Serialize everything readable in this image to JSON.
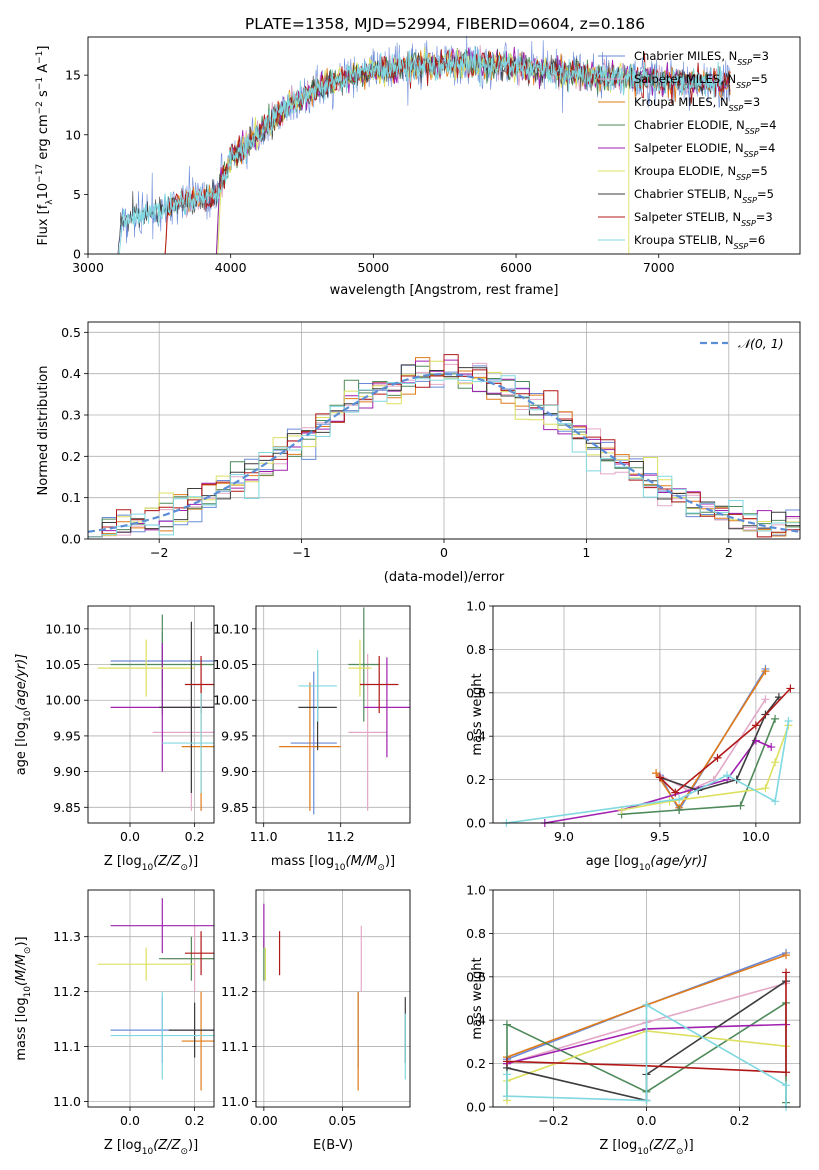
{
  "title": "PLATE=1358, MJD=52994, FIBERID=0604, z=0.186",
  "colors": {
    "chabrier_miles": "#6a8ad8",
    "salpeter_miles": "#e3a8c8",
    "kroupa_miles": "#e07b1a",
    "chabrier_elodie": "#4f8a5a",
    "salpeter_elodie": "#a020b0",
    "kroupa_elodie": "#dde060",
    "chabrier_stelib": "#3c3c3c",
    "salpeter_stelib": "#b01818",
    "kroupa_stelib": "#80d8e0",
    "grid": "#b0b0b0",
    "gauss": "#5b8ed6"
  },
  "chart_data": [
    {
      "id": "spectrum",
      "type": "line",
      "xlabel": "wavelength [Angstrom, rest frame]",
      "ylabel": "Flux [f",
      "ylabel_sub": "λ",
      "ylabel_exp": "10",
      "ylabel_sup": "−17",
      "ylabel_rest": " erg cm",
      "ylabel_sup2": "−2",
      "ylabel_rest2": " s",
      "ylabel_sup3": "−1",
      "ylabel_rest3": " A",
      "ylabel_sup4": "−1",
      "ylabel_end": "]",
      "xlim": [
        3000,
        7990
      ],
      "ylim": [
        0,
        18.2
      ],
      "xticks": [
        "3000",
        "4000",
        "5000",
        "6000",
        "7000"
      ],
      "yticks": [
        "0",
        "5",
        "10",
        "15"
      ],
      "legend_position": "right",
      "series": [
        {
          "key": "chabrier_miles",
          "name": "Chabrier MILES, N",
          "sub": "SSP",
          "n": "=3",
          "start": 3210
        },
        {
          "key": "salpeter_miles",
          "name": "Salpeter MILES, N",
          "sub": "SSP",
          "n": "=5",
          "start": 3540
        },
        {
          "key": "kroupa_miles",
          "name": "Kroupa MILES, N",
          "sub": "SSP",
          "n": "=3",
          "start": 3540
        },
        {
          "key": "chabrier_elodie",
          "name": "Chabrier ELODIE, N",
          "sub": "SSP",
          "n": "=4",
          "start": 3900
        },
        {
          "key": "salpeter_elodie",
          "name": "Salpeter ELODIE, N",
          "sub": "SSP",
          "n": "=4",
          "start": 3900
        },
        {
          "key": "kroupa_elodie",
          "name": "Kroupa ELODIE, N",
          "sub": "SSP",
          "n": "=5",
          "start": 3910
        },
        {
          "key": "chabrier_stelib",
          "name": "Chabrier STELIB, N",
          "sub": "SSP",
          "n": "=5",
          "start": 3210
        },
        {
          "key": "salpeter_stelib",
          "name": "Salpeter STELIB, N",
          "sub": "SSP",
          "n": "=3",
          "start": 3540
        },
        {
          "key": "kroupa_stelib",
          "name": "Kroupa STELIB, N",
          "sub": "SSP",
          "n": "=6",
          "start": 3220
        }
      ],
      "continuum": [
        [
          3210,
          2.7
        ],
        [
          3500,
          3.6
        ],
        [
          3700,
          4.5
        ],
        [
          3900,
          5.0
        ],
        [
          4000,
          8.0
        ],
        [
          4200,
          10.0
        ],
        [
          4400,
          12.5
        ],
        [
          4600,
          13.8
        ],
        [
          4800,
          14.8
        ],
        [
          5000,
          15.4
        ],
        [
          5300,
          15.8
        ],
        [
          5600,
          16.0
        ],
        [
          5900,
          15.9
        ],
        [
          6200,
          15.5
        ],
        [
          6500,
          15.0
        ],
        [
          6800,
          14.7
        ],
        [
          7100,
          14.5
        ],
        [
          7500,
          14.2
        ]
      ]
    },
    {
      "id": "residuals",
      "type": "histogram",
      "xlabel": "(data-model)/error",
      "ylabel": "Normed distribution",
      "xlim": [
        -2.5,
        2.5
      ],
      "ylim": [
        0,
        0.525
      ],
      "xticks": [
        "−2",
        "−1",
        "0",
        "1",
        "2"
      ],
      "yticks": [
        "0.0",
        "0.1",
        "0.2",
        "0.3",
        "0.4",
        "0.5"
      ],
      "legend_label": "𝒩(0, 1)",
      "legend_position": "top-right",
      "bin_width": 0.1
    },
    {
      "id": "age_vs_Z",
      "type": "errorbar",
      "xlabel": "Z [log",
      "xlabel_sub": "10",
      "xlabel_rest": "(Z/Z",
      "xlabel_sun": "⊙",
      "xlabel_end": ")]",
      "ylabel": "age  [log",
      "ylabel_sub": "10",
      "ylabel_rest": "(age/yr)]",
      "xlim": [
        -0.13,
        0.26
      ],
      "ylim": [
        9.828,
        10.132
      ],
      "xticks": [
        "0.0",
        "0.2"
      ],
      "yticks": [
        "9.85",
        "9.90",
        "9.95",
        "10.00",
        "10.05",
        "10.10"
      ],
      "points": [
        {
          "key": "chabrier_miles",
          "x": 0.1,
          "xerr": 0.16,
          "y": 10.055,
          "yerr": 0.04
        },
        {
          "key": "salpeter_miles",
          "x": 0.19,
          "xerr": 0.12,
          "y": 9.955,
          "yerr": 0.11
        },
        {
          "key": "kroupa_miles",
          "x": 0.22,
          "xerr": 0.06,
          "y": 9.935,
          "yerr": 0.09
        },
        {
          "key": "chabrier_elodie",
          "x": 0.1,
          "xerr": 0.16,
          "y": 10.05,
          "yerr": 0.07
        },
        {
          "key": "salpeter_elodie",
          "x": 0.1,
          "xerr": 0.16,
          "y": 9.99,
          "yerr": 0.09
        },
        {
          "key": "kroupa_elodie",
          "x": 0.05,
          "xerr": 0.15,
          "y": 10.045,
          "yerr": 0.04
        },
        {
          "key": "chabrier_stelib",
          "x": 0.19,
          "xerr": 0.1,
          "y": 9.99,
          "yerr": 0.12
        },
        {
          "key": "salpeter_stelib",
          "x": 0.22,
          "xerr": 0.05,
          "y": 10.022,
          "yerr": 0.04
        },
        {
          "key": "kroupa_stelib",
          "x": 0.22,
          "xerr": 0.12,
          "y": 9.94,
          "yerr": 0.07
        }
      ]
    },
    {
      "id": "age_vs_mass",
      "type": "errorbar",
      "xlabel": "mass [log",
      "xlabel_sub": "10",
      "xlabel_rest": "(M/M",
      "xlabel_sun": "⊙",
      "xlabel_end": ")]",
      "xlim": [
        10.98,
        11.38
      ],
      "ylim": [
        9.828,
        10.132
      ],
      "xticks": [
        "11.0",
        "11.2"
      ],
      "yticks": [
        "9.85",
        "9.90",
        "9.95",
        "10.00",
        "10.05",
        "10.10"
      ],
      "points": [
        {
          "key": "chabrier_miles",
          "x": 11.13,
          "xerr": 0.06,
          "y": 9.94,
          "yerr": 0.1
        },
        {
          "key": "salpeter_miles",
          "x": 11.27,
          "xerr": 0.05,
          "y": 9.955,
          "yerr": 0.11
        },
        {
          "key": "kroupa_miles",
          "x": 11.12,
          "xerr": 0.08,
          "y": 9.935,
          "yerr": 0.09
        },
        {
          "key": "chabrier_elodie",
          "x": 11.26,
          "xerr": 0.04,
          "y": 10.05,
          "yerr": 0.08
        },
        {
          "key": "salpeter_elodie",
          "x": 11.32,
          "xerr": 0.06,
          "y": 9.99,
          "yerr": 0.07
        },
        {
          "key": "kroupa_elodie",
          "x": 11.25,
          "xerr": 0.03,
          "y": 10.045,
          "yerr": 0.04
        },
        {
          "key": "chabrier_stelib",
          "x": 11.14,
          "xerr": 0.05,
          "y": 9.99,
          "yerr": 0.06
        },
        {
          "key": "salpeter_stelib",
          "x": 11.3,
          "xerr": 0.05,
          "y": 10.022,
          "yerr": 0.04
        },
        {
          "key": "kroupa_stelib",
          "x": 11.14,
          "xerr": 0.05,
          "y": 10.02,
          "yerr": 0.05
        }
      ]
    },
    {
      "id": "weight_vs_age",
      "type": "line",
      "xlabel": "age  [log",
      "xlabel_sub": "10",
      "xlabel_rest": "(age/yr)]",
      "ylabel": "mass weight",
      "xlim": [
        8.63,
        10.23
      ],
      "ylim": [
        0,
        1.0
      ],
      "xticks": [
        "9.0",
        "9.5",
        "10.0"
      ],
      "yticks": [
        "0.0",
        "0.2",
        "0.4",
        "0.6",
        "0.8",
        "1.0"
      ],
      "series": [
        {
          "key": "chabrier_miles",
          "x": [
            9.5,
            9.6,
            10.05
          ],
          "y": [
            0.22,
            0.06,
            0.71
          ]
        },
        {
          "key": "salpeter_miles",
          "x": [
            9.48,
            9.65,
            9.78,
            10.05
          ],
          "y": [
            0.23,
            0.15,
            0.2,
            0.57
          ]
        },
        {
          "key": "kroupa_miles",
          "x": [
            9.48,
            9.6,
            10.05
          ],
          "y": [
            0.23,
            0.07,
            0.7
          ]
        },
        {
          "key": "chabrier_elodie",
          "x": [
            9.3,
            9.6,
            9.92,
            10.1
          ],
          "y": [
            0.04,
            0.06,
            0.08,
            0.48
          ]
        },
        {
          "key": "salpeter_elodie",
          "x": [
            8.9,
            9.3,
            9.85,
            10.0,
            10.08
          ],
          "y": [
            0.0,
            0.06,
            0.2,
            0.38,
            0.35
          ]
        },
        {
          "key": "kroupa_elodie",
          "x": [
            9.3,
            9.55,
            10.05,
            10.1,
            10.17
          ],
          "y": [
            0.06,
            0.1,
            0.16,
            0.28,
            0.45
          ]
        },
        {
          "key": "chabrier_stelib",
          "x": [
            9.5,
            9.7,
            9.9,
            10.05,
            10.12
          ],
          "y": [
            0.21,
            0.15,
            0.2,
            0.5,
            0.58
          ]
        },
        {
          "key": "salpeter_stelib",
          "x": [
            9.5,
            9.58,
            9.8,
            10.0,
            10.18
          ],
          "y": [
            0.21,
            0.14,
            0.3,
            0.45,
            0.62
          ]
        },
        {
          "key": "kroupa_stelib",
          "x": [
            8.7,
            9.6,
            9.85,
            10.1,
            10.17
          ],
          "y": [
            0.0,
            0.11,
            0.22,
            0.1,
            0.47
          ]
        }
      ]
    },
    {
      "id": "mass_vs_Z",
      "type": "errorbar",
      "xlabel": "Z [log",
      "xlabel_sub": "10",
      "xlabel_rest": "(Z/Z",
      "xlabel_sun": "⊙",
      "xlabel_end": ")]",
      "ylabel": "mass [log",
      "ylabel_sub": "10",
      "ylabel_rest": "(M/M",
      "ylabel_sun": "⊙",
      "ylabel_end": ")]",
      "xlim": [
        -0.13,
        0.26
      ],
      "ylim": [
        10.99,
        11.385
      ],
      "xticks": [
        "0.0",
        "0.2"
      ],
      "yticks": [
        "11.0",
        "11.1",
        "11.2",
        "11.3"
      ],
      "points": [
        {
          "key": "chabrier_miles",
          "x": 0.1,
          "xerr": 0.16,
          "y": 11.13,
          "yerr": 0.06
        },
        {
          "key": "salpeter_miles",
          "x": 0.2,
          "xerr": 0.1,
          "y": 11.26,
          "yerr": 0.06
        },
        {
          "key": "kroupa_miles",
          "x": 0.22,
          "xerr": 0.06,
          "y": 11.11,
          "yerr": 0.09
        },
        {
          "key": "chabrier_elodie",
          "x": 0.19,
          "xerr": 0.1,
          "y": 11.26,
          "yerr": 0.04
        },
        {
          "key": "salpeter_elodie",
          "x": 0.1,
          "xerr": 0.16,
          "y": 11.32,
          "yerr": 0.05
        },
        {
          "key": "kroupa_elodie",
          "x": 0.05,
          "xerr": 0.15,
          "y": 11.25,
          "yerr": 0.03
        },
        {
          "key": "chabrier_stelib",
          "x": 0.2,
          "xerr": 0.08,
          "y": 11.13,
          "yerr": 0.05
        },
        {
          "key": "salpeter_stelib",
          "x": 0.22,
          "xerr": 0.05,
          "y": 11.27,
          "yerr": 0.04
        },
        {
          "key": "kroupa_stelib",
          "x": 0.1,
          "xerr": 0.16,
          "y": 11.12,
          "yerr": 0.08
        }
      ]
    },
    {
      "id": "mass_vs_ebv",
      "type": "errorbar",
      "xlabel": "E(B-V)",
      "xlim": [
        -0.005,
        0.093
      ],
      "ylim": [
        10.99,
        11.385
      ],
      "xticks": [
        "0.00",
        "0.05"
      ],
      "yticks": [
        "11.0",
        "11.1",
        "11.2",
        "11.3"
      ],
      "points": [
        {
          "key": "chabrier_miles",
          "x": 0.06,
          "xerr": 0,
          "y": 11.13,
          "yerr": 0.07
        },
        {
          "key": "salpeter_miles",
          "x": 0.062,
          "xerr": 0,
          "y": 11.26,
          "yerr": 0.06
        },
        {
          "key": "kroupa_miles",
          "x": 0.06,
          "xerr": 0,
          "y": 11.11,
          "yerr": 0.09
        },
        {
          "key": "chabrier_elodie",
          "x": 0.0,
          "xerr": 0,
          "y": 11.26,
          "yerr": 0.04
        },
        {
          "key": "salpeter_elodie",
          "x": 0.0,
          "xerr": 0,
          "y": 11.32,
          "yerr": 0.04
        },
        {
          "key": "kroupa_elodie",
          "x": 0.001,
          "xerr": 0,
          "y": 11.25,
          "yerr": 0.03
        },
        {
          "key": "chabrier_stelib",
          "x": 0.09,
          "xerr": 0,
          "y": 11.13,
          "yerr": 0.06
        },
        {
          "key": "salpeter_stelib",
          "x": 0.01,
          "xerr": 0,
          "y": 11.27,
          "yerr": 0.04
        },
        {
          "key": "kroupa_stelib",
          "x": 0.09,
          "xerr": 0,
          "y": 11.1,
          "yerr": 0.06
        }
      ]
    },
    {
      "id": "weight_vs_Z",
      "type": "line",
      "xlabel": "Z [log",
      "xlabel_sub": "10",
      "xlabel_rest": "(Z/Z",
      "xlabel_sun": "⊙",
      "xlabel_end": ")]",
      "ylabel": "mass weight",
      "xlim": [
        -0.33,
        0.33
      ],
      "ylim": [
        0,
        1.0
      ],
      "xticks": [
        "−0.2",
        "0.0",
        "0.2"
      ],
      "yticks": [
        "0.0",
        "0.2",
        "0.4",
        "0.6",
        "0.8",
        "1.0"
      ],
      "series": [
        {
          "key": "chabrier_miles",
          "x": [
            -0.3,
            0.0,
            0.3
          ],
          "y": [
            0.22,
            0.47,
            0.71
          ]
        },
        {
          "key": "salpeter_miles",
          "x": [
            -0.3,
            0.0,
            0.3
          ],
          "y": [
            0.2,
            0.39,
            0.57
          ]
        },
        {
          "key": "kroupa_miles",
          "x": [
            -0.3,
            0.0,
            0.3
          ],
          "y": [
            0.23,
            0.47,
            0.7
          ]
        },
        {
          "key": "chabrier_elodie",
          "x": [
            -0.3,
            -0.3,
            0.0,
            0.3,
            0.3
          ],
          "y": [
            0.05,
            0.38,
            0.07,
            0.48,
            0.02
          ]
        },
        {
          "key": "salpeter_elodie",
          "x": [
            -0.3,
            0.0,
            0.3
          ],
          "y": [
            0.2,
            0.36,
            0.38
          ]
        },
        {
          "key": "kroupa_elodie",
          "x": [
            -0.3,
            -0.3,
            0.0,
            0.3
          ],
          "y": [
            0.03,
            0.12,
            0.35,
            0.28
          ]
        },
        {
          "key": "chabrier_stelib",
          "x": [
            -0.3,
            0.0,
            0.0,
            0.3
          ],
          "y": [
            0.18,
            0.03,
            0.15,
            0.58
          ]
        },
        {
          "key": "salpeter_stelib",
          "x": [
            -0.3,
            0.0,
            0.3,
            0.3
          ],
          "y": [
            0.21,
            0.19,
            0.16,
            0.62
          ]
        },
        {
          "key": "kroupa_stelib",
          "x": [
            -0.3,
            -0.3,
            0.0,
            0.0,
            0.3,
            0.3
          ],
          "y": [
            0.15,
            0.05,
            0.03,
            0.47,
            0.1,
            0.0
          ]
        }
      ]
    }
  ]
}
